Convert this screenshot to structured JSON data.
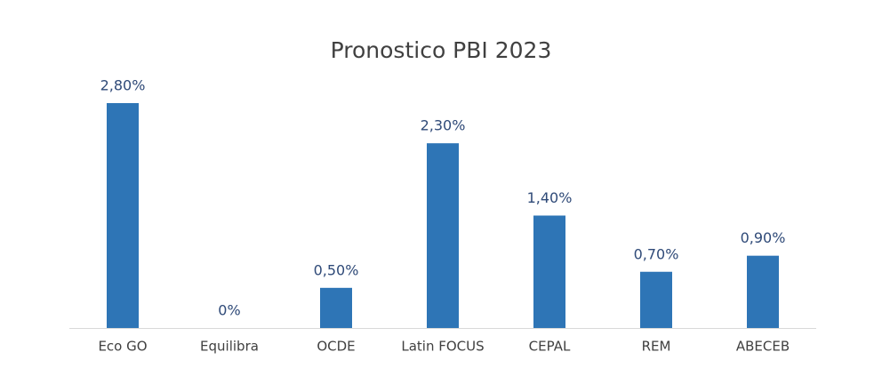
{
  "chart_data": {
    "type": "bar",
    "title": "Pronostico PBI 2023",
    "categories": [
      "Eco GO",
      "Equilibra",
      "OCDE",
      "Latin FOCUS",
      "CEPAL",
      "REM",
      "ABECEB"
    ],
    "values": [
      2.8,
      0,
      0.5,
      2.3,
      1.4,
      0.7,
      0.9
    ],
    "value_labels": [
      "2,80%",
      "0%",
      "0,50%",
      "2,30%",
      "1,40%",
      "0,70%",
      "0,90%"
    ],
    "color": "#2e75b6"
  }
}
